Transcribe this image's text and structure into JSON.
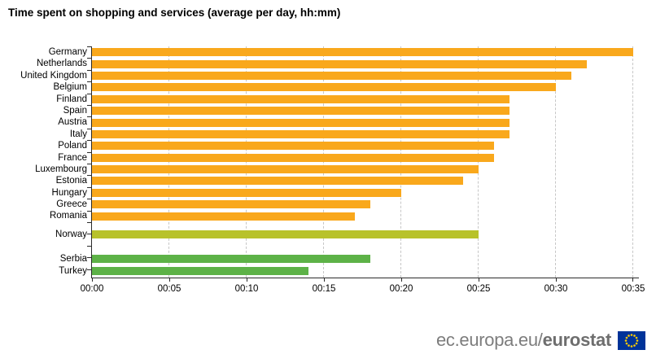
{
  "title": "Time spent on shopping and services (average per day, hh:mm)",
  "footer": {
    "url_regular": "ec.europa.eu/",
    "url_bold": "eurostat",
    "flag_icon": "eu-flag-icon"
  },
  "chart_data": {
    "type": "bar",
    "orientation": "horizontal",
    "title": "Time spent on shopping and services (average per day, hh:mm)",
    "xlabel": "",
    "ylabel": "",
    "unit": "hh:mm",
    "xlim_minutes": [
      0,
      35
    ],
    "x_tick_step_minutes": 5,
    "x_ticks": [
      "00:00",
      "00:05",
      "00:10",
      "00:15",
      "00:20",
      "00:25",
      "00:30",
      "00:35"
    ],
    "gridlines": "vertical-dashed",
    "legend": "none",
    "colors": {
      "eu": "#F9A81C",
      "efta": "#B8C22A",
      "candidate": "#5DB247"
    },
    "rows": [
      {
        "label": "Germany",
        "group": "eu",
        "minutes": 35,
        "hhmm": "00:35"
      },
      {
        "label": "Netherlands",
        "group": "eu",
        "minutes": 32,
        "hhmm": "00:32"
      },
      {
        "label": "United Kingdom",
        "group": "eu",
        "minutes": 31,
        "hhmm": "00:31"
      },
      {
        "label": "Belgium",
        "group": "eu",
        "minutes": 30,
        "hhmm": "00:30"
      },
      {
        "label": "Finland",
        "group": "eu",
        "minutes": 27,
        "hhmm": "00:27"
      },
      {
        "label": "Spain",
        "group": "eu",
        "minutes": 27,
        "hhmm": "00:27"
      },
      {
        "label": "Austria",
        "group": "eu",
        "minutes": 27,
        "hhmm": "00:27"
      },
      {
        "label": "Italy",
        "group": "eu",
        "minutes": 27,
        "hhmm": "00:27"
      },
      {
        "label": "Poland",
        "group": "eu",
        "minutes": 26,
        "hhmm": "00:26"
      },
      {
        "label": "France",
        "group": "eu",
        "minutes": 26,
        "hhmm": "00:26"
      },
      {
        "label": "Luxembourg",
        "group": "eu",
        "minutes": 25,
        "hhmm": "00:25"
      },
      {
        "label": "Estonia",
        "group": "eu",
        "minutes": 24,
        "hhmm": "00:24"
      },
      {
        "label": "Hungary",
        "group": "eu",
        "minutes": 20,
        "hhmm": "00:20"
      },
      {
        "label": "Greece",
        "group": "eu",
        "minutes": 18,
        "hhmm": "00:18"
      },
      {
        "label": "Romania",
        "group": "eu",
        "minutes": 17,
        "hhmm": "00:17"
      },
      {
        "label": "Norway",
        "group": "efta",
        "minutes": 25,
        "hhmm": "00:25"
      },
      {
        "label": "Serbia",
        "group": "candidate",
        "minutes": 18,
        "hhmm": "00:18"
      },
      {
        "label": "Turkey",
        "group": "candidate",
        "minutes": 14,
        "hhmm": "00:14"
      }
    ]
  }
}
